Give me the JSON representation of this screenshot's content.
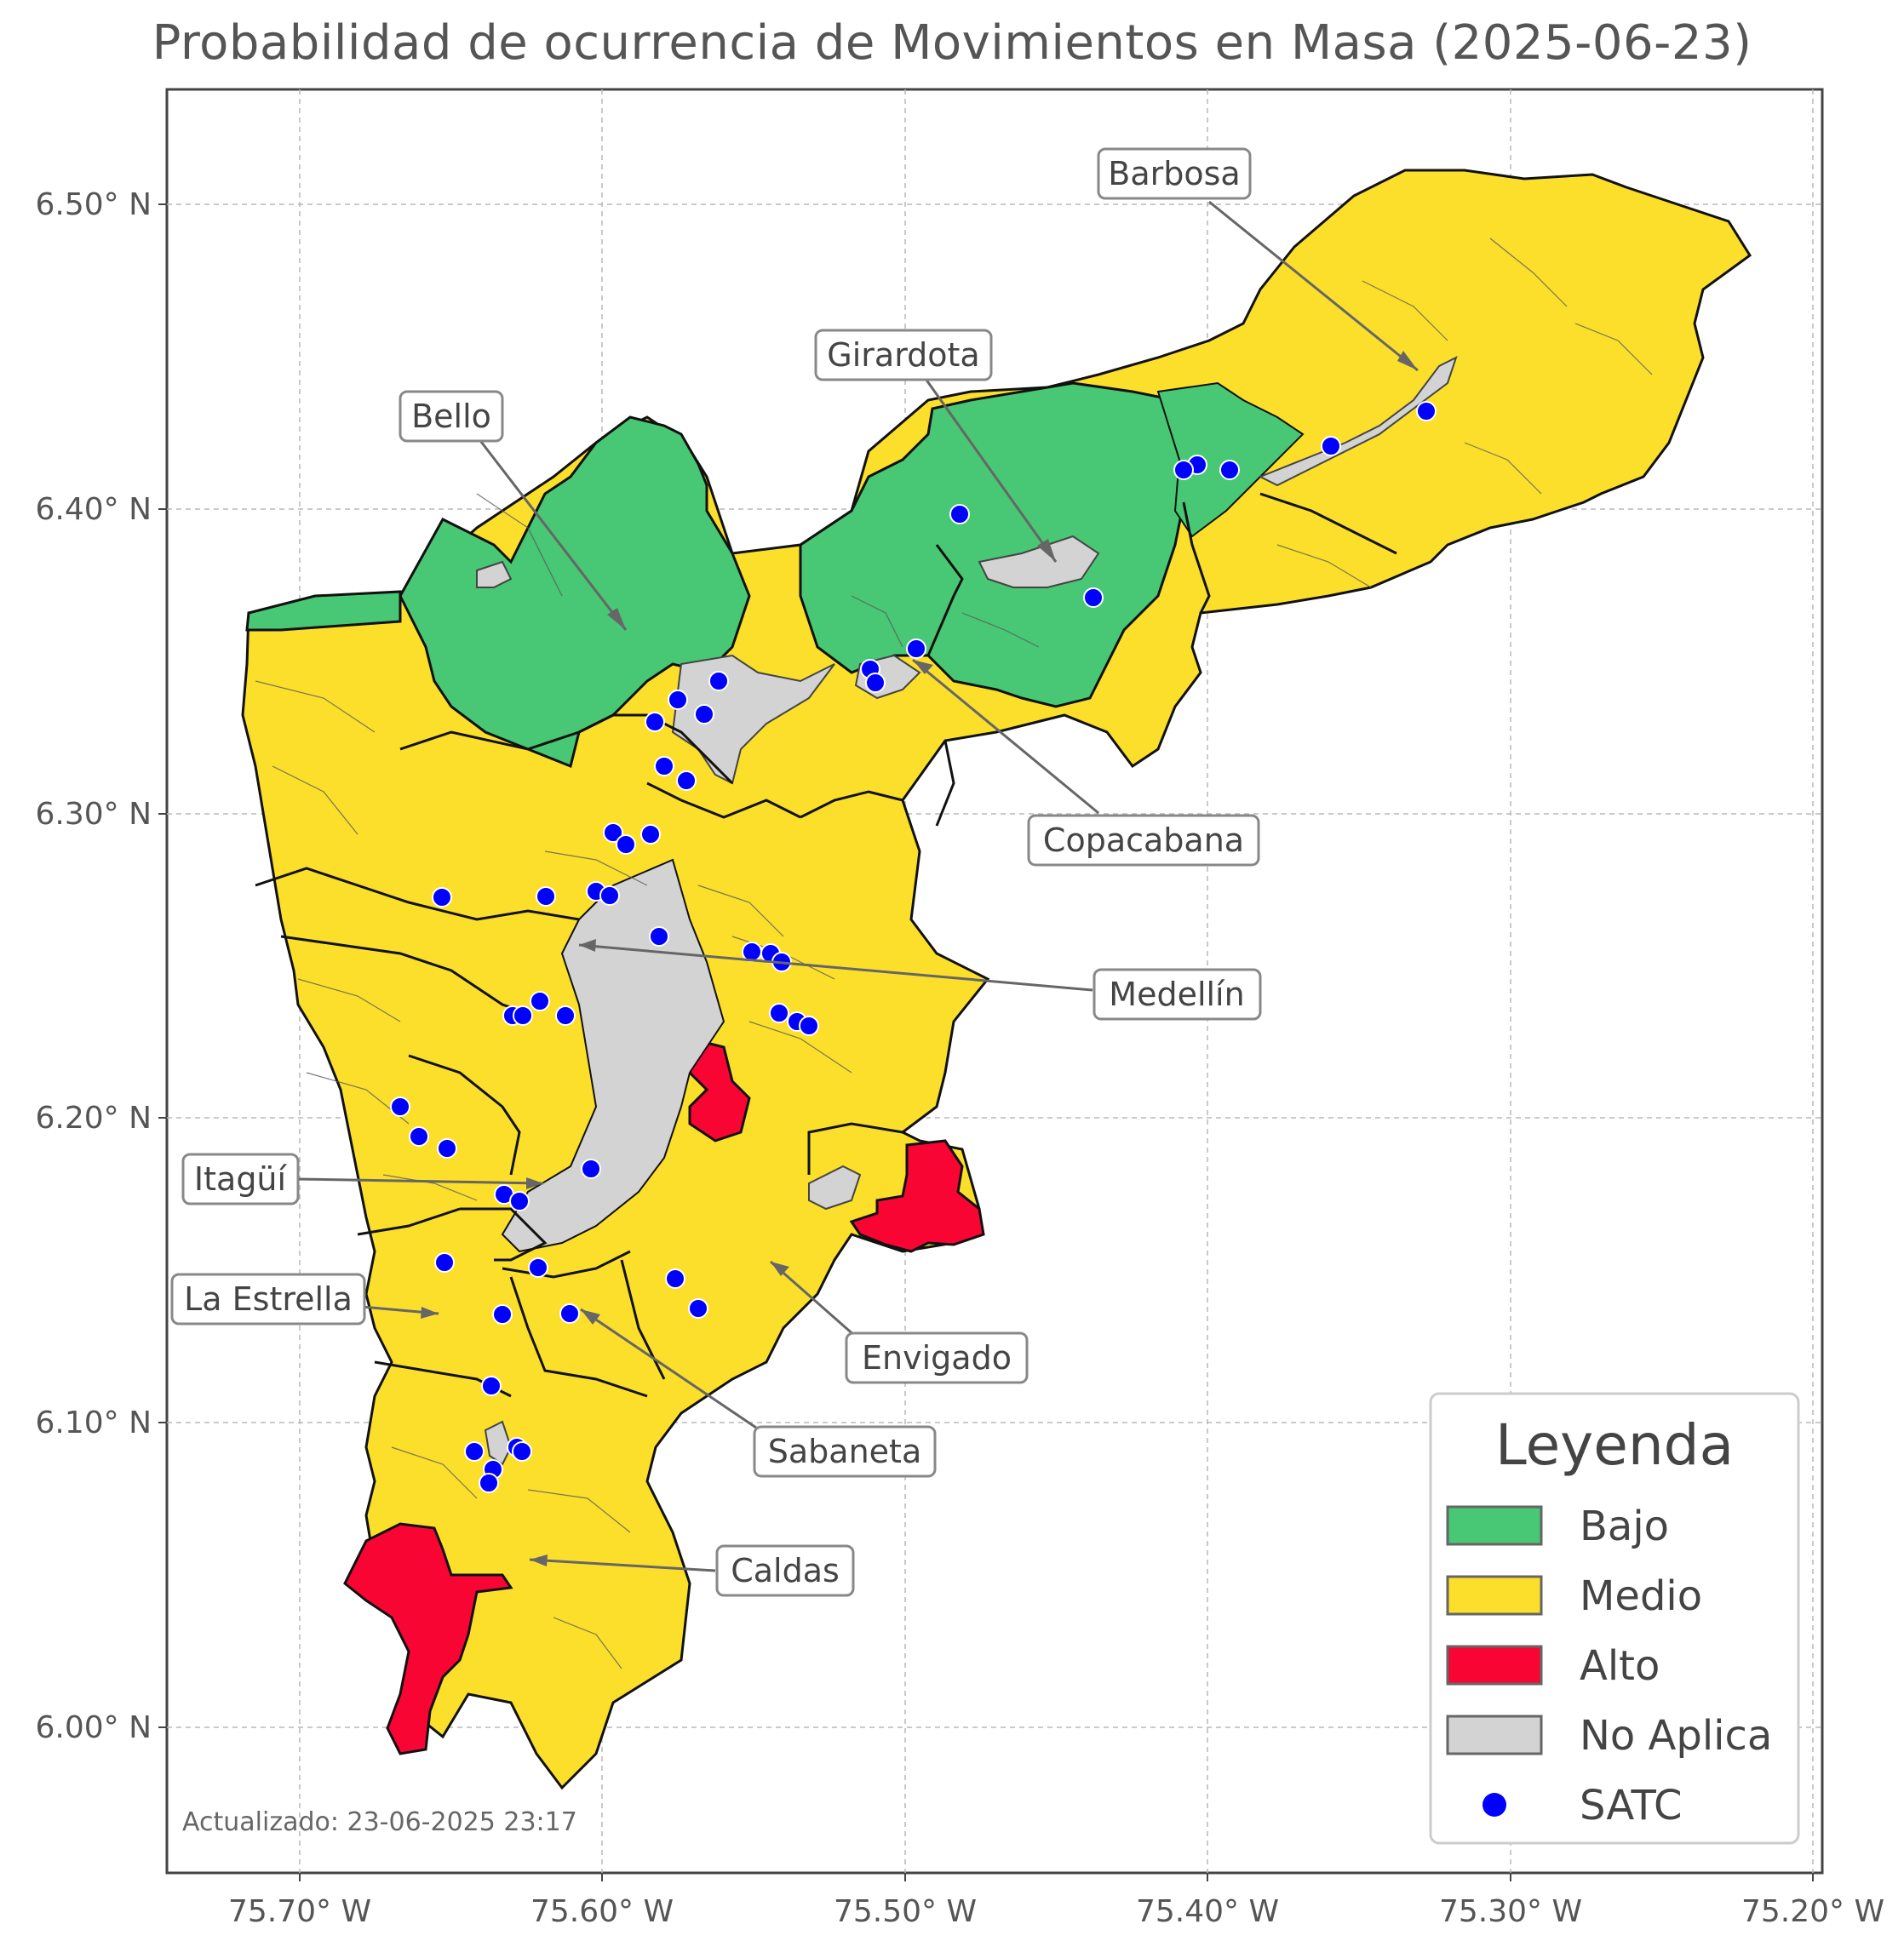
{
  "title": "Probabilidad de ocurrencia de Movimientos en Masa (2025-06-23)",
  "updated_text": "Actualizado: 23-06-2025 23:17",
  "colors": {
    "bajo": "#48c774",
    "medio": "#fbdf2b",
    "alto": "#f80534",
    "no_aplica": "#d3d3d3",
    "satc": "#0000ff"
  },
  "axes": {
    "y_ticks": [
      "6.50° N",
      "6.40° N",
      "6.30° N",
      "6.20° N",
      "6.10° N",
      "6.00° N"
    ],
    "x_ticks": [
      "75.70° W",
      "75.60° W",
      "75.50° W",
      "75.40° W",
      "75.30° W",
      "75.20° W"
    ]
  },
  "legend": {
    "title": "Leyenda",
    "items": [
      {
        "label": "Bajo",
        "icon": "swatch-green"
      },
      {
        "label": "Medio",
        "icon": "swatch-yellow"
      },
      {
        "label": "Alto",
        "icon": "swatch-red"
      },
      {
        "label": "No Aplica",
        "icon": "swatch-gray"
      },
      {
        "label": "SATC",
        "icon": "blue-dot"
      }
    ]
  },
  "municipalities": [
    "Barbosa",
    "Girardota",
    "Bello",
    "Copacabana",
    "Medellín",
    "Itagüí",
    "La Estrella",
    "Envigado",
    "Sabaneta",
    "Caldas"
  ]
}
